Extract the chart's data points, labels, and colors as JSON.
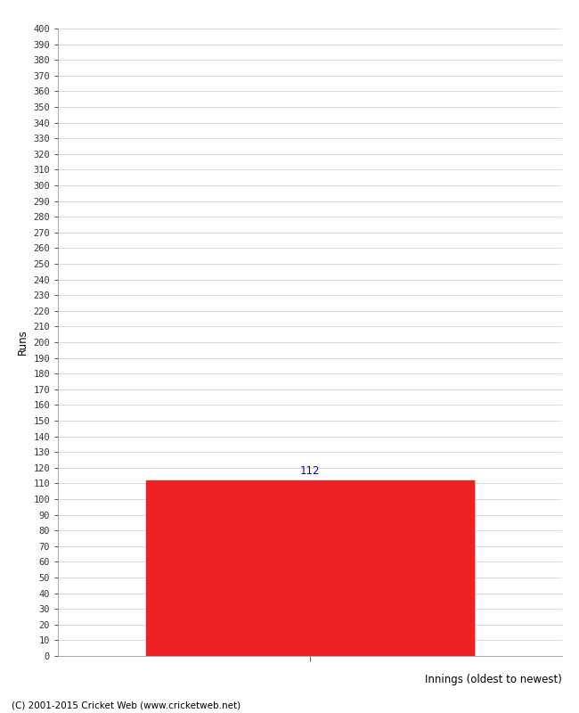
{
  "bar_values": [
    112
  ],
  "bar_positions": [
    1
  ],
  "bar_color": "#ee2222",
  "bar_width": 0.65,
  "xlabel": "Innings (oldest to newest)",
  "ylabel": "Runs",
  "ylim": [
    0,
    400
  ],
  "ytick_step": 10,
  "background_color": "#ffffff",
  "grid_color": "#cccccc",
  "annotation_color": "#0000cc",
  "footer_text": "(C) 2001-2015 Cricket Web (www.cricketweb.net)",
  "footer_color": "#000000",
  "xlabel_color": "#000000",
  "ylabel_color": "#000000",
  "axis_label_fontsize": 8.5,
  "tick_fontsize": 7.5,
  "annotation_fontsize": 8.5,
  "footer_fontsize": 7.5
}
